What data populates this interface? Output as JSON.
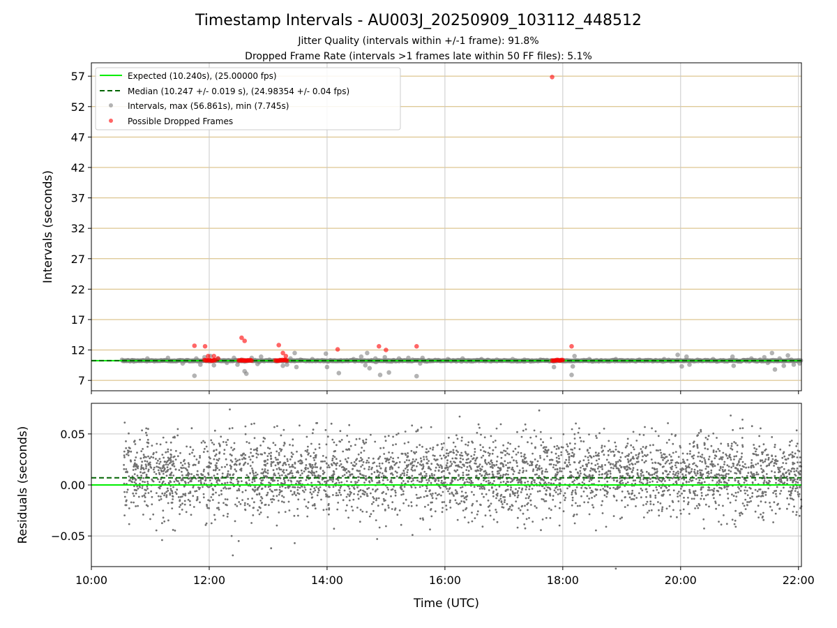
{
  "chart_data": [
    {
      "type": "scatter",
      "title": "Timestamp Intervals - AU003J_20250909_103112_448512",
      "subtitle_1": "Jitter Quality (intervals within +/-1 frame): 91.8%",
      "subtitle_2": "Dropped Frame Rate (intervals >1 frames late within 50 FF files): 5.1%",
      "xlabel": "",
      "ylabel": "Intervals (seconds)",
      "xlim_hours": [
        10.0,
        22.05
      ],
      "ylim": [
        5.3,
        59.2
      ],
      "y_ticks": [
        7,
        12,
        17,
        22,
        27,
        32,
        37,
        42,
        47,
        52,
        57
      ],
      "y_tick_labels": [
        "7",
        "12",
        "17",
        "22",
        "27",
        "32",
        "37",
        "42",
        "47",
        "52",
        "57"
      ],
      "x_ticks_hours": [
        10,
        12,
        14,
        16,
        18,
        20,
        22
      ],
      "grid": "horizontal gold lines at y ticks, vertical gray lines at x ticks",
      "legend_position": "upper-left",
      "lines": {
        "expected": {
          "label": "Expected (10.240s), (25.00000 fps)",
          "value": 10.24,
          "color": "#00ee00",
          "style": "solid"
        },
        "median": {
          "label": "Median (10.247 +/- 0.019 s), (24.98354 +/- 0.04 fps)",
          "value": 10.247,
          "color": "#006400",
          "style": "dashed"
        }
      },
      "intervals": {
        "label": "Intervals, max (56.861s), min (7.745s)",
        "color": "#808080",
        "data_start_hours": 10.52,
        "data_end_hours": 22.05,
        "baseline": 10.24,
        "outliers": [
          [
            10.72,
            10.1
          ],
          [
            10.95,
            10.6
          ],
          [
            11.3,
            10.7
          ],
          [
            11.55,
            9.8
          ],
          [
            11.65,
            10.3
          ],
          [
            11.75,
            7.75
          ],
          [
            11.78,
            10.6
          ],
          [
            11.85,
            9.6
          ],
          [
            11.92,
            10.8
          ],
          [
            12.02,
            11.0
          ],
          [
            12.08,
            9.5
          ],
          [
            12.15,
            10.6
          ],
          [
            12.3,
            9.9
          ],
          [
            12.42,
            10.7
          ],
          [
            12.48,
            9.6
          ],
          [
            12.55,
            10.4
          ],
          [
            12.6,
            8.5
          ],
          [
            12.63,
            8.1
          ],
          [
            12.72,
            10.7
          ],
          [
            12.82,
            9.7
          ],
          [
            12.88,
            10.9
          ],
          [
            13.02,
            10.4
          ],
          [
            13.15,
            10.2
          ],
          [
            13.25,
            9.4
          ],
          [
            13.32,
            9.6
          ],
          [
            13.38,
            10.6
          ],
          [
            13.45,
            11.5
          ],
          [
            13.48,
            9.2
          ],
          [
            13.55,
            10.4
          ],
          [
            13.75,
            10.5
          ],
          [
            13.98,
            11.4
          ],
          [
            14.0,
            9.2
          ],
          [
            14.2,
            8.2
          ],
          [
            14.25,
            10.2
          ],
          [
            14.45,
            10.5
          ],
          [
            14.58,
            10.9
          ],
          [
            14.65,
            9.5
          ],
          [
            14.68,
            11.5
          ],
          [
            14.72,
            9.0
          ],
          [
            14.82,
            10.6
          ],
          [
            14.9,
            7.9
          ],
          [
            14.98,
            10.8
          ],
          [
            15.05,
            8.3
          ],
          [
            15.1,
            10.1
          ],
          [
            15.18,
            10.2
          ],
          [
            15.22,
            10.6
          ],
          [
            15.38,
            10.7
          ],
          [
            15.45,
            10.4
          ],
          [
            15.52,
            7.7
          ],
          [
            15.58,
            9.8
          ],
          [
            15.62,
            10.7
          ],
          [
            15.72,
            10.2
          ],
          [
            16.05,
            10.5
          ],
          [
            16.3,
            10.6
          ],
          [
            16.62,
            10.5
          ],
          [
            16.88,
            10.4
          ],
          [
            17.15,
            10.5
          ],
          [
            17.35,
            10.4
          ],
          [
            17.62,
            10.4
          ],
          [
            17.85,
            9.2
          ],
          [
            18.15,
            7.9
          ],
          [
            18.17,
            9.3
          ],
          [
            18.2,
            11.0
          ],
          [
            18.45,
            10.5
          ],
          [
            18.9,
            10.5
          ],
          [
            19.3,
            10.4
          ],
          [
            19.72,
            10.5
          ],
          [
            19.95,
            11.2
          ],
          [
            20.02,
            9.3
          ],
          [
            20.1,
            10.9
          ],
          [
            20.15,
            9.6
          ],
          [
            20.55,
            10.5
          ],
          [
            20.88,
            10.9
          ],
          [
            20.9,
            9.4
          ],
          [
            21.2,
            10.6
          ],
          [
            21.35,
            10.4
          ],
          [
            21.42,
            10.8
          ],
          [
            21.48,
            9.9
          ],
          [
            21.55,
            11.5
          ],
          [
            21.6,
            8.8
          ],
          [
            21.68,
            10.6
          ],
          [
            21.75,
            9.4
          ],
          [
            21.82,
            11.1
          ],
          [
            21.88,
            10.4
          ],
          [
            21.92,
            9.6
          ],
          [
            21.98,
            10.2
          ],
          [
            22.02,
            9.8
          ]
        ]
      },
      "dropped_frames": {
        "label": "Possible Dropped Frames",
        "color": "#ff0000",
        "points": [
          [
            11.75,
            12.7
          ],
          [
            11.93,
            12.6
          ],
          [
            11.98,
            11.0
          ],
          [
            12.08,
            11.0
          ],
          [
            12.15,
            10.6
          ],
          [
            12.55,
            14.0
          ],
          [
            12.6,
            13.5
          ],
          [
            13.18,
            12.8
          ],
          [
            13.25,
            11.5
          ],
          [
            13.3,
            11.0
          ],
          [
            14.18,
            12.1
          ],
          [
            14.88,
            12.6
          ],
          [
            15.0,
            12.0
          ],
          [
            15.52,
            12.6
          ],
          [
            17.82,
            56.86
          ],
          [
            18.15,
            12.6
          ]
        ],
        "clusters_hours": [
          [
            11.92,
            12.1
          ],
          [
            12.5,
            12.72
          ],
          [
            13.12,
            13.32
          ],
          [
            17.82,
            18.0
          ]
        ],
        "cluster_value": 10.3
      }
    },
    {
      "type": "scatter",
      "title": "",
      "xlabel": "Time (UTC)",
      "ylabel": "Residuals (seconds)",
      "xlim_hours": [
        10.0,
        22.05
      ],
      "ylim": [
        -0.08,
        0.08
      ],
      "y_ticks": [
        -0.05,
        0.0,
        0.05
      ],
      "y_tick_labels": [
        "−0.05",
        "0.00",
        "0.05"
      ],
      "x_ticks_hours": [
        10,
        12,
        14,
        16,
        18,
        20,
        22
      ],
      "x_tick_labels": [
        "10:00",
        "12:00",
        "14:00",
        "16:00",
        "18:00",
        "20:00",
        "22:00"
      ],
      "grid": "gray grid at x and y ticks",
      "expected_line": 0.0,
      "median_line": 0.007,
      "residuals": {
        "color": "#707070",
        "count": 3800,
        "data_start_hours": 10.55,
        "data_end_hours": 22.05,
        "mean": 0.01,
        "std": 0.019,
        "extremes": [
          [
            11.2,
            -0.054
          ],
          [
            12.35,
            0.074
          ],
          [
            12.4,
            -0.069
          ],
          [
            12.5,
            -0.055
          ],
          [
            12.38,
            -0.05
          ],
          [
            13.05,
            -0.062
          ],
          [
            13.45,
            -0.057
          ],
          [
            17.6,
            0.073
          ],
          [
            18.9,
            -0.082
          ],
          [
            15.45,
            -0.049
          ],
          [
            20.85,
            0.068
          ],
          [
            21.05,
            0.064
          ],
          [
            14.85,
            -0.053
          ],
          [
            16.25,
            0.067
          ]
        ]
      }
    }
  ]
}
